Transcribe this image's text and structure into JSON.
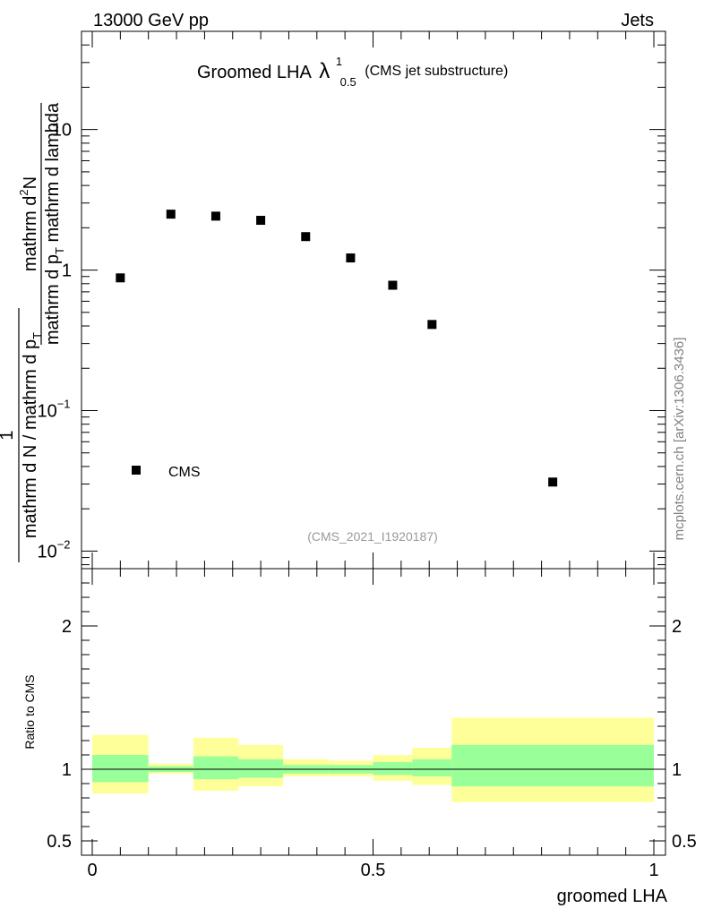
{
  "header": {
    "left": "13000 GeV pp",
    "right": "Jets"
  },
  "side_label": "mcplots.cern.ch [arXiv:1306.3436]",
  "chart_data": {
    "type": "scatter",
    "title_main": "Groomed LHA",
    "title_symbol": "λ",
    "title_sup": "1",
    "title_sub": "0.5",
    "title_note": "(CMS jet substructure)",
    "watermark": "(CMS_2021_I1920187)",
    "xlabel": "groomed LHA",
    "ylabel_main": {
      "numerator": "mathrm d",
      "numerator_sup": "2",
      "numerator_tail": "N",
      "denominator_a": "mathrm d p",
      "denominator_a_sub": "T",
      "denominator_b": " mathrm d lambda",
      "prefix_numerator": "1",
      "prefix_denominator_a": "mathrm d N / mathrm d p",
      "prefix_denominator_a_sub": "T"
    },
    "ylabel_ratio": "Ratio to CMS",
    "xlim": [
      0,
      1
    ],
    "ylim_main": [
      0.0075,
      50
    ],
    "ylim_ratio": [
      0.4,
      2.4
    ],
    "x_ticks": [
      {
        "value": 0,
        "label": "0"
      },
      {
        "value": 0.5,
        "label": "0.5"
      },
      {
        "value": 1,
        "label": "1"
      }
    ],
    "y_ticks_main": [
      {
        "value": 0.01,
        "base": "10",
        "exp": "−2"
      },
      {
        "value": 0.1,
        "base": "10",
        "exp": "−1"
      },
      {
        "value": 1,
        "base": "1",
        "exp": ""
      },
      {
        "value": 10,
        "base": "10",
        "exp": ""
      }
    ],
    "y_ticks_ratio": [
      {
        "value": 0.5,
        "label": "0.5"
      },
      {
        "value": 1,
        "label": "1"
      },
      {
        "value": 2,
        "label": "2"
      }
    ],
    "legend": {
      "label": "CMS",
      "placement": "lower-left"
    },
    "series": [
      {
        "name": "CMS",
        "points": [
          {
            "x": 0.05,
            "y": 0.88
          },
          {
            "x": 0.14,
            "y": 2.5
          },
          {
            "x": 0.22,
            "y": 2.42
          },
          {
            "x": 0.3,
            "y": 2.26
          },
          {
            "x": 0.38,
            "y": 1.73
          },
          {
            "x": 0.46,
            "y": 1.22
          },
          {
            "x": 0.535,
            "y": 0.78
          },
          {
            "x": 0.605,
            "y": 0.41
          },
          {
            "x": 0.82,
            "y": 0.031
          }
        ]
      }
    ],
    "ratio_bands": [
      {
        "x0": 0.0,
        "x1": 0.1,
        "inner": [
          0.91,
          1.1
        ],
        "outer": [
          0.83,
          1.24
        ]
      },
      {
        "x0": 0.1,
        "x1": 0.18,
        "inner": [
          0.98,
          1.02
        ],
        "outer": [
          0.97,
          1.04
        ]
      },
      {
        "x0": 0.18,
        "x1": 0.26,
        "inner": [
          0.93,
          1.09
        ],
        "outer": [
          0.85,
          1.22
        ]
      },
      {
        "x0": 0.26,
        "x1": 0.34,
        "inner": [
          0.94,
          1.07
        ],
        "outer": [
          0.88,
          1.17
        ]
      },
      {
        "x0": 0.34,
        "x1": 0.42,
        "inner": [
          0.97,
          1.03
        ],
        "outer": [
          0.95,
          1.07
        ]
      },
      {
        "x0": 0.42,
        "x1": 0.5,
        "inner": [
          0.97,
          1.03
        ],
        "outer": [
          0.95,
          1.06
        ]
      },
      {
        "x0": 0.5,
        "x1": 0.57,
        "inner": [
          0.96,
          1.05
        ],
        "outer": [
          0.92,
          1.1
        ]
      },
      {
        "x0": 0.57,
        "x1": 0.64,
        "inner": [
          0.95,
          1.07
        ],
        "outer": [
          0.89,
          1.15
        ]
      },
      {
        "x0": 0.64,
        "x1": 1.0,
        "inner": [
          0.88,
          1.17
        ],
        "outer": [
          0.77,
          1.36
        ]
      }
    ],
    "colors": {
      "marker": "#000000",
      "band_inner": "#99ff99",
      "band_outer": "#ffff99",
      "watermark": "#999999",
      "side_label": "#808080",
      "axis": "#000000"
    }
  }
}
